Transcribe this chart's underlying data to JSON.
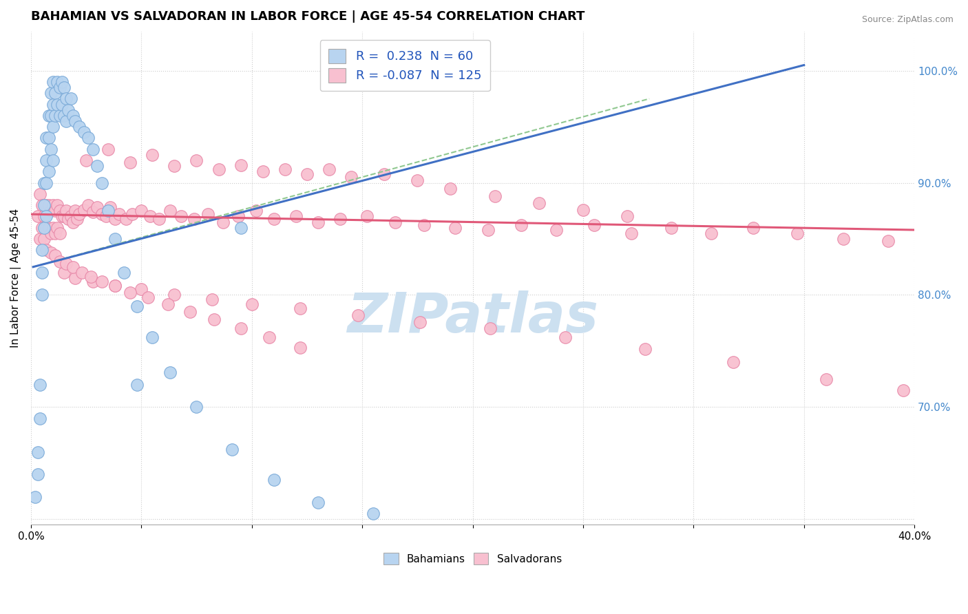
{
  "title": "BAHAMIAN VS SALVADORAN IN LABOR FORCE | AGE 45-54 CORRELATION CHART",
  "source": "Source: ZipAtlas.com",
  "ylabel": "In Labor Force | Age 45-54",
  "xlim": [
    0.0,
    0.4
  ],
  "ylim": [
    0.595,
    1.035
  ],
  "xticks": [
    0.0,
    0.05,
    0.1,
    0.15,
    0.2,
    0.25,
    0.3,
    0.35,
    0.4
  ],
  "xticklabels": [
    "0.0%",
    "",
    "",
    "",
    "",
    "",
    "",
    "",
    "40.0%"
  ],
  "yticks_right": [
    1.0,
    0.9,
    0.8,
    0.7
  ],
  "ytick_right_labels": [
    "100.0%",
    "90.0%",
    "80.0%",
    "70.0%"
  ],
  "legend_r_blue": "0.238",
  "legend_n_blue": "60",
  "legend_r_pink": "-0.087",
  "legend_n_pink": "125",
  "blue_color": "#b8d4f0",
  "blue_edge": "#7aaad8",
  "pink_color": "#f8c0d0",
  "pink_edge": "#e888a8",
  "blue_line_color": "#4070c4",
  "pink_line_color": "#e05878",
  "dash_line_color": "#90c890",
  "watermark": "ZIPatlas",
  "watermark_color": "#cce0f0",
  "blue_line_x0": 0.001,
  "blue_line_x1": 0.35,
  "blue_line_y0": 0.825,
  "blue_line_y1": 1.005,
  "dash_line_x0": 0.001,
  "dash_line_x1": 0.28,
  "dash_line_y0": 0.825,
  "dash_line_y1": 0.975,
  "pink_line_x0": 0.0,
  "pink_line_x1": 0.4,
  "pink_line_y0": 0.872,
  "pink_line_y1": 0.858,
  "blue_pts_x": [
    0.002,
    0.003,
    0.003,
    0.004,
    0.004,
    0.005,
    0.005,
    0.005,
    0.006,
    0.006,
    0.006,
    0.007,
    0.007,
    0.007,
    0.007,
    0.008,
    0.008,
    0.008,
    0.009,
    0.009,
    0.009,
    0.01,
    0.01,
    0.01,
    0.01,
    0.011,
    0.011,
    0.012,
    0.012,
    0.013,
    0.013,
    0.014,
    0.014,
    0.015,
    0.015,
    0.016,
    0.016,
    0.017,
    0.018,
    0.019,
    0.02,
    0.022,
    0.024,
    0.026,
    0.028,
    0.03,
    0.032,
    0.035,
    0.038,
    0.042,
    0.048,
    0.055,
    0.063,
    0.075,
    0.091,
    0.11,
    0.13,
    0.155,
    0.095,
    0.048
  ],
  "blue_pts_y": [
    0.62,
    0.66,
    0.64,
    0.72,
    0.69,
    0.84,
    0.82,
    0.8,
    0.9,
    0.88,
    0.86,
    0.94,
    0.92,
    0.9,
    0.87,
    0.96,
    0.94,
    0.91,
    0.98,
    0.96,
    0.93,
    0.99,
    0.97,
    0.95,
    0.92,
    0.98,
    0.96,
    0.99,
    0.97,
    0.985,
    0.96,
    0.99,
    0.97,
    0.985,
    0.96,
    0.975,
    0.955,
    0.965,
    0.975,
    0.96,
    0.955,
    0.95,
    0.945,
    0.94,
    0.93,
    0.915,
    0.9,
    0.875,
    0.85,
    0.82,
    0.79,
    0.762,
    0.731,
    0.7,
    0.662,
    0.635,
    0.615,
    0.605,
    0.86,
    0.72
  ],
  "pink_pts_x": [
    0.003,
    0.004,
    0.004,
    0.005,
    0.005,
    0.006,
    0.006,
    0.007,
    0.007,
    0.008,
    0.008,
    0.009,
    0.009,
    0.01,
    0.01,
    0.011,
    0.011,
    0.012,
    0.012,
    0.013,
    0.013,
    0.014,
    0.015,
    0.016,
    0.017,
    0.018,
    0.019,
    0.02,
    0.021,
    0.022,
    0.024,
    0.026,
    0.028,
    0.03,
    0.032,
    0.034,
    0.036,
    0.038,
    0.04,
    0.043,
    0.046,
    0.05,
    0.054,
    0.058,
    0.063,
    0.068,
    0.074,
    0.08,
    0.087,
    0.094,
    0.102,
    0.11,
    0.12,
    0.13,
    0.14,
    0.152,
    0.165,
    0.178,
    0.192,
    0.207,
    0.222,
    0.238,
    0.255,
    0.272,
    0.29,
    0.308,
    0.327,
    0.347,
    0.368,
    0.388,
    0.025,
    0.035,
    0.045,
    0.055,
    0.065,
    0.075,
    0.085,
    0.095,
    0.105,
    0.115,
    0.125,
    0.135,
    0.145,
    0.16,
    0.175,
    0.19,
    0.21,
    0.23,
    0.25,
    0.27,
    0.015,
    0.02,
    0.028,
    0.038,
    0.05,
    0.065,
    0.082,
    0.1,
    0.122,
    0.148,
    0.176,
    0.208,
    0.242,
    0.278,
    0.318,
    0.36,
    0.395,
    0.007,
    0.009,
    0.011,
    0.013,
    0.016,
    0.019,
    0.023,
    0.027,
    0.032,
    0.038,
    0.045,
    0.053,
    0.062,
    0.072,
    0.083,
    0.095,
    0.108,
    0.122
  ],
  "pink_pts_y": [
    0.87,
    0.89,
    0.85,
    0.88,
    0.86,
    0.87,
    0.85,
    0.88,
    0.86,
    0.88,
    0.86,
    0.875,
    0.855,
    0.88,
    0.86,
    0.875,
    0.855,
    0.88,
    0.86,
    0.875,
    0.855,
    0.87,
    0.87,
    0.875,
    0.868,
    0.87,
    0.865,
    0.875,
    0.868,
    0.872,
    0.876,
    0.88,
    0.874,
    0.878,
    0.872,
    0.87,
    0.878,
    0.868,
    0.872,
    0.868,
    0.872,
    0.875,
    0.87,
    0.868,
    0.875,
    0.87,
    0.868,
    0.872,
    0.865,
    0.87,
    0.875,
    0.868,
    0.87,
    0.865,
    0.868,
    0.87,
    0.865,
    0.862,
    0.86,
    0.858,
    0.862,
    0.858,
    0.862,
    0.855,
    0.86,
    0.855,
    0.86,
    0.855,
    0.85,
    0.848,
    0.92,
    0.93,
    0.918,
    0.925,
    0.915,
    0.92,
    0.912,
    0.916,
    0.91,
    0.912,
    0.908,
    0.912,
    0.905,
    0.908,
    0.902,
    0.895,
    0.888,
    0.882,
    0.876,
    0.87,
    0.82,
    0.815,
    0.812,
    0.808,
    0.805,
    0.8,
    0.796,
    0.792,
    0.788,
    0.782,
    0.776,
    0.77,
    0.762,
    0.752,
    0.74,
    0.725,
    0.715,
    0.84,
    0.838,
    0.835,
    0.83,
    0.828,
    0.825,
    0.82,
    0.816,
    0.812,
    0.808,
    0.802,
    0.798,
    0.792,
    0.785,
    0.778,
    0.77,
    0.762,
    0.753
  ]
}
